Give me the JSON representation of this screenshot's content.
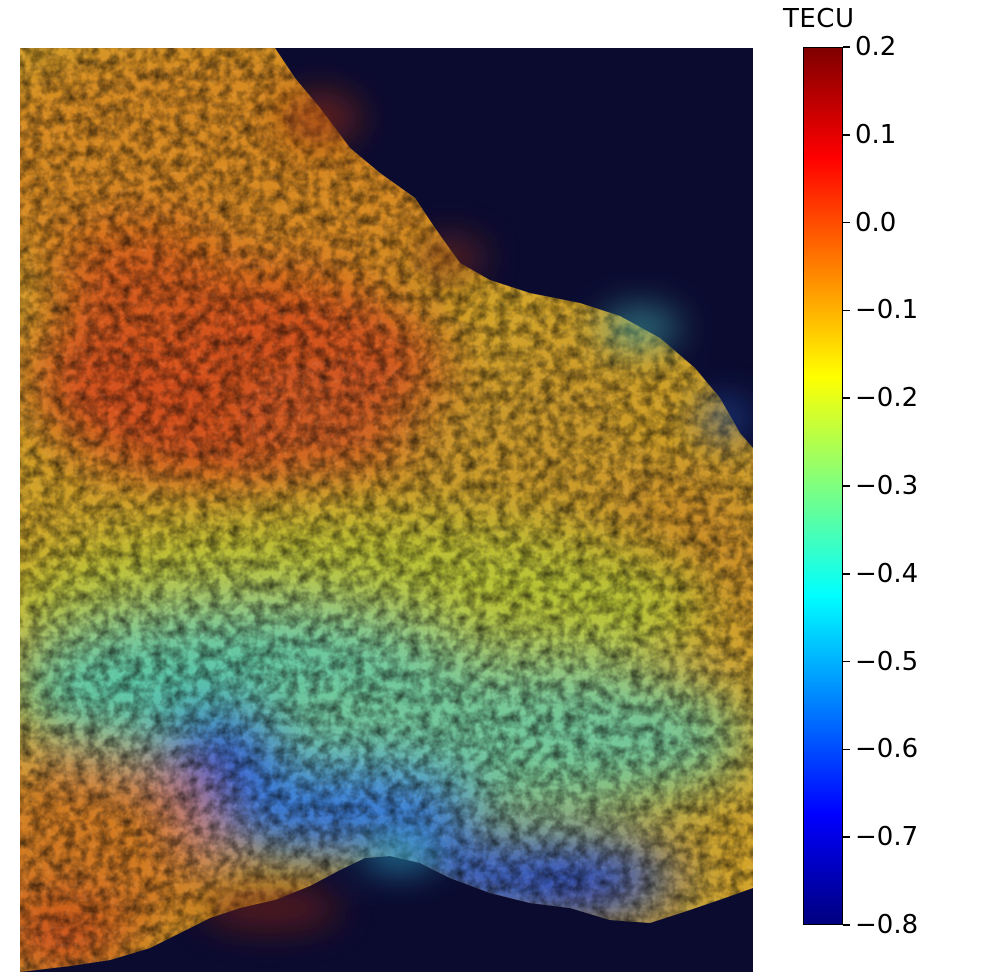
{
  "colorbar": {
    "title": "TECU",
    "min": -0.8,
    "max": 0.2,
    "colormap": "jet",
    "stops": [
      "#00007f",
      "#0000ff",
      "#007fff",
      "#00ffff",
      "#7fff7f",
      "#ffff00",
      "#ff7f00",
      "#ff0000",
      "#7f0000"
    ],
    "ticks": [
      {
        "value": 0.2,
        "label": "0.2"
      },
      {
        "value": 0.1,
        "label": "0.1"
      },
      {
        "value": 0.0,
        "label": "0.0"
      },
      {
        "value": -0.1,
        "label": "−0.1"
      },
      {
        "value": -0.2,
        "label": "−0.2"
      },
      {
        "value": -0.3,
        "label": "−0.3"
      },
      {
        "value": -0.4,
        "label": "−0.4"
      },
      {
        "value": -0.5,
        "label": "−0.5"
      },
      {
        "value": -0.6,
        "label": "−0.6"
      },
      {
        "value": -0.7,
        "label": "−0.7"
      },
      {
        "value": -0.8,
        "label": "−0.8"
      }
    ]
  },
  "image": {
    "description_colors": {
      "background_ocean": "#0a0a2e",
      "land_base": "#c8b030"
    }
  }
}
